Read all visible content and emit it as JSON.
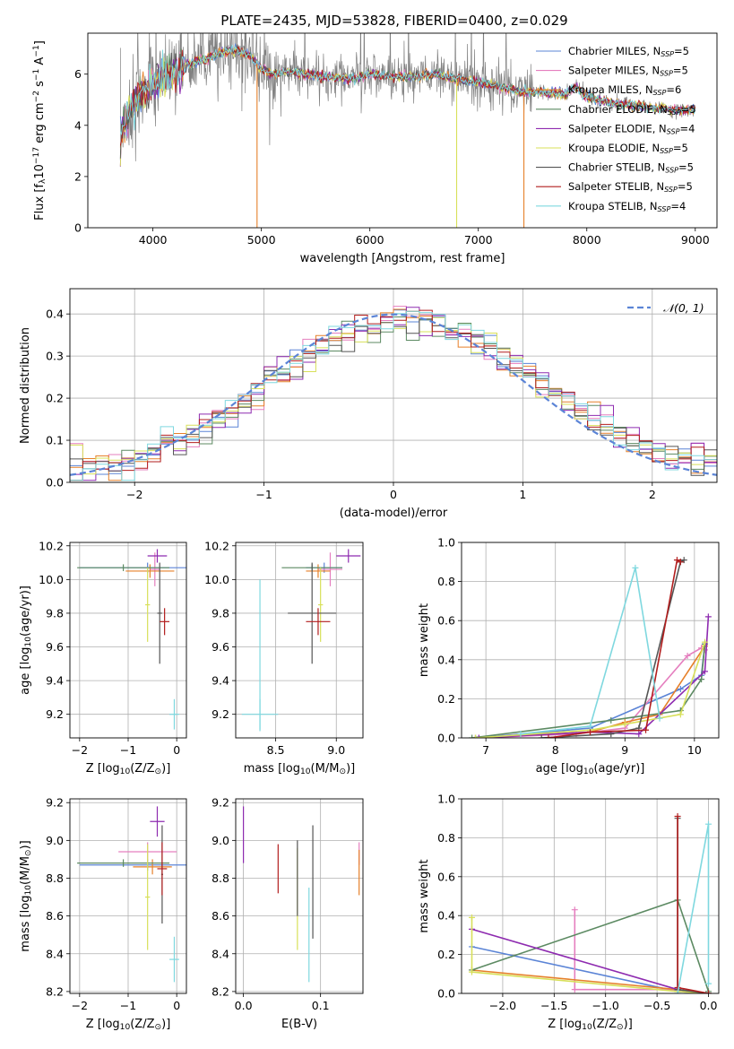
{
  "figure": {
    "title": "PLATE=2435, MJD=53828, FIBERID=0400, z=0.029"
  },
  "colors": {
    "Chabrier MILES": "#5b84d6",
    "Salpeter MILES": "#e57fbf",
    "Kroupa MILES": "#e6802a",
    "Chabrier ELODIE": "#5c8a62",
    "Salpeter ELODIE": "#8e2bb0",
    "Kroupa ELODIE": "#d8e05a",
    "Chabrier STELIB": "#555555",
    "Salpeter STELIB": "#b21e1e",
    "Kroupa STELIB": "#7fd8df",
    "gaussian": "#5b84d6",
    "observed_spectrum": "#808080"
  },
  "chart_data": [
    {
      "type": "line",
      "panel": "spectrum",
      "xlabel": "wavelength [Angstrom, rest frame]",
      "ylabel": "Flux [fλ10⁻¹⁷ erg cm⁻² s⁻¹ A⁻¹]",
      "xlim": [
        3400,
        9200
      ],
      "ylim": [
        0,
        7.6
      ],
      "xticks": [
        4000,
        5000,
        6000,
        7000,
        8000,
        9000
      ],
      "yticks": [
        0,
        2,
        4,
        6
      ],
      "grid": false,
      "legend_position": "top-right",
      "legend": [
        {
          "label": "Chabrier MILES, N",
          "sub": "SSP",
          "suffix": "=5",
          "series": "Chabrier MILES"
        },
        {
          "label": "Salpeter MILES, N",
          "sub": "SSP",
          "suffix": "=5",
          "series": "Salpeter MILES"
        },
        {
          "label": "Kroupa MILES, N",
          "sub": "SSP",
          "suffix": "=6",
          "series": "Kroupa MILES"
        },
        {
          "label": "Chabrier ELODIE, N",
          "sub": "SSP",
          "suffix": "=5",
          "series": "Chabrier ELODIE"
        },
        {
          "label": "Salpeter ELODIE, N",
          "sub": "SSP",
          "suffix": "=4",
          "series": "Salpeter ELODIE"
        },
        {
          "label": "Kroupa ELODIE, N",
          "sub": "SSP",
          "suffix": "=5",
          "series": "Kroupa ELODIE"
        },
        {
          "label": "Chabrier STELIB, N",
          "sub": "SSP",
          "suffix": "=5",
          "series": "Chabrier STELIB"
        },
        {
          "label": "Salpeter STELIB, N",
          "sub": "SSP",
          "suffix": "=5",
          "series": "Salpeter STELIB"
        },
        {
          "label": "Kroupa STELIB, N",
          "sub": "SSP",
          "suffix": "=4",
          "series": "Kroupa STELIB"
        }
      ],
      "model_trend": {
        "x": [
          3700,
          3750,
          3800,
          3900,
          4000,
          4100,
          4200,
          4300,
          4400,
          4500,
          4600,
          4700,
          4800,
          4900,
          5000,
          5100,
          5200,
          5400,
          5600,
          5800,
          6000,
          6200,
          6400,
          6600,
          6800,
          7000,
          7200,
          7400,
          7600,
          7800,
          7900,
          8000,
          8200,
          8400,
          8600,
          8800,
          9000
        ],
        "y": [
          3.6,
          4.2,
          4.7,
          5.3,
          5.6,
          5.9,
          6.1,
          6.3,
          6.5,
          6.6,
          6.8,
          6.9,
          6.9,
          6.7,
          6.2,
          6.0,
          6.1,
          6.0,
          5.9,
          5.8,
          6.0,
          5.9,
          5.9,
          6.0,
          5.8,
          5.7,
          5.5,
          5.3,
          5.3,
          5.2,
          5.5,
          5.1,
          4.9,
          4.8,
          4.7,
          4.6,
          4.6
        ]
      },
      "spikes": [
        {
          "x": 4960,
          "y": 0.0,
          "series": "Kroupa MILES"
        },
        {
          "x": 6800,
          "y": 0.0,
          "series": "Kroupa ELODIE"
        },
        {
          "x": 7420,
          "y": 0.0,
          "series": "Kroupa MILES"
        }
      ]
    },
    {
      "type": "line",
      "panel": "residual_histogram",
      "xlabel": "(data-model)/error",
      "ylabel": "Normed distribution",
      "xlim": [
        -2.5,
        2.5
      ],
      "ylim": [
        0,
        0.46
      ],
      "xticks": [
        -2,
        -1,
        0,
        1,
        2
      ],
      "yticks": [
        0.0,
        0.1,
        0.2,
        0.3,
        0.4
      ],
      "grid": true,
      "legend_position": "top-right",
      "legend": [
        {
          "label": "𝒩(0, 1)",
          "series": "gaussian"
        }
      ],
      "bin_width": 0.1
    },
    {
      "type": "scatter",
      "panel": "age_vs_Z",
      "xlabel": "Z [log₁₀(Z/Z⊙)]",
      "ylabel": "age  [log₁₀(age/yr)]",
      "xlim": [
        -2.2,
        0.2
      ],
      "ylim": [
        9.06,
        10.22
      ],
      "xticks": [
        -2,
        -1,
        0
      ],
      "yticks": [
        9.2,
        9.4,
        9.6,
        9.8,
        10.0,
        10.2
      ],
      "grid": true,
      "points": [
        {
          "series": "Chabrier MILES",
          "x": -0.6,
          "y": 10.07,
          "xerr": 1.4,
          "yerr": 0.03
        },
        {
          "series": "Salpeter MILES",
          "x": -0.45,
          "y": 10.06,
          "xerr": 0.1,
          "yerr": 0.1
        },
        {
          "series": "Kroupa MILES",
          "x": -0.55,
          "y": 10.05,
          "xerr": 0.5,
          "yerr": 0.04
        },
        {
          "series": "Chabrier ELODIE",
          "x": -1.1,
          "y": 10.07,
          "xerr": 0.95,
          "yerr": 0.02
        },
        {
          "series": "Salpeter ELODIE",
          "x": -0.4,
          "y": 10.14,
          "xerr": 0.2,
          "yerr": 0.04
        },
        {
          "series": "Kroupa ELODIE",
          "x": -0.6,
          "y": 9.85,
          "xerr": 0.05,
          "yerr": 0.22
        },
        {
          "series": "Chabrier STELIB",
          "x": -0.35,
          "y": 9.8,
          "xerr": 0.05,
          "yerr": 0.3
        },
        {
          "series": "Salpeter STELIB",
          "x": -0.25,
          "y": 9.75,
          "xerr": 0.1,
          "yerr": 0.08
        },
        {
          "series": "Kroupa STELIB",
          "x": -0.05,
          "y": 9.2,
          "xerr": 0.1,
          "yerr": 0.09
        }
      ]
    },
    {
      "type": "scatter",
      "panel": "age_vs_mass",
      "xlabel": "mass [log₁₀(M/M⊙)]",
      "ylabel": "",
      "xlim": [
        8.17,
        9.22
      ],
      "ylim": [
        9.06,
        10.22
      ],
      "xticks": [
        8.5,
        9.0
      ],
      "yticks": [
        9.2,
        9.4,
        9.6,
        9.8,
        10.0,
        10.2
      ],
      "grid": true,
      "points": [
        {
          "series": "Chabrier MILES",
          "x": 8.9,
          "y": 10.07,
          "xerr": 0.15,
          "yerr": 0.03
        },
        {
          "series": "Salpeter MILES",
          "x": 8.95,
          "y": 10.06,
          "xerr": 0.1,
          "yerr": 0.1
        },
        {
          "series": "Kroupa MILES",
          "x": 8.85,
          "y": 10.05,
          "xerr": 0.1,
          "yerr": 0.04
        },
        {
          "series": "Chabrier ELODIE",
          "x": 8.8,
          "y": 10.07,
          "xerr": 0.25,
          "yerr": 0.02
        },
        {
          "series": "Salpeter ELODIE",
          "x": 9.1,
          "y": 10.14,
          "xerr": 0.1,
          "yerr": 0.04
        },
        {
          "series": "Kroupa ELODIE",
          "x": 8.87,
          "y": 9.85,
          "xerr": 0.02,
          "yerr": 0.22
        },
        {
          "series": "Chabrier STELIB",
          "x": 8.8,
          "y": 9.8,
          "xerr": 0.2,
          "yerr": 0.3
        },
        {
          "series": "Salpeter STELIB",
          "x": 8.85,
          "y": 9.75,
          "xerr": 0.1,
          "yerr": 0.08
        },
        {
          "series": "Kroupa STELIB",
          "x": 8.37,
          "y": 9.2,
          "xerr": 0.15,
          "yerr": 0.09
        },
        {
          "series": "Kroupa STELIB",
          "x": 8.37,
          "y": 9.55,
          "xerr": 0.0,
          "yerr": 0.45
        }
      ]
    },
    {
      "type": "line",
      "panel": "mass_weight_vs_age",
      "xlabel": "age  [log₁₀(age/yr)]",
      "ylabel": "mass weight",
      "xlim": [
        6.65,
        10.35
      ],
      "ylim": [
        0,
        1.0
      ],
      "xticks": [
        7,
        8,
        9,
        10
      ],
      "yticks": [
        0.0,
        0.2,
        0.4,
        0.6,
        0.8,
        1.0
      ],
      "grid": true,
      "series": [
        {
          "name": "Chabrier MILES",
          "x": [
            6.85,
            8.5,
            9.8,
            10.1,
            10.15
          ],
          "y": [
            0.0,
            0.05,
            0.25,
            0.32,
            0.48
          ]
        },
        {
          "name": "Salpeter MILES",
          "x": [
            6.9,
            8.3,
            9.0,
            9.9,
            10.1,
            10.15
          ],
          "y": [
            0.0,
            0.02,
            0.05,
            0.42,
            0.46,
            0.45
          ]
        },
        {
          "name": "Kroupa MILES",
          "x": [
            6.85,
            8.5,
            9.0,
            9.5,
            10.15
          ],
          "y": [
            0.0,
            0.03,
            0.08,
            0.12,
            0.47
          ]
        },
        {
          "name": "Chabrier ELODIE",
          "x": [
            6.8,
            8.8,
            9.8,
            10.1,
            10.15
          ],
          "y": [
            0.0,
            0.09,
            0.14,
            0.3,
            0.48
          ]
        },
        {
          "name": "Salpeter ELODIE",
          "x": [
            6.9,
            8.5,
            9.2,
            10.15,
            10.2
          ],
          "y": [
            0.0,
            0.03,
            0.02,
            0.34,
            0.62
          ]
        },
        {
          "name": "Kroupa ELODIE",
          "x": [
            6.85,
            8.5,
            9.0,
            9.8,
            10.15
          ],
          "y": [
            0.0,
            0.04,
            0.07,
            0.12,
            0.49
          ]
        },
        {
          "name": "Chabrier STELIB",
          "x": [
            7.8,
            8.8,
            9.2,
            9.8,
            9.85
          ],
          "y": [
            0.0,
            0.02,
            0.05,
            0.9,
            0.91
          ]
        },
        {
          "name": "Salpeter STELIB",
          "x": [
            7.9,
            8.5,
            9.3,
            9.75,
            9.8
          ],
          "y": [
            0.0,
            0.03,
            0.04,
            0.91,
            0.9
          ]
        },
        {
          "name": "Kroupa STELIB",
          "x": [
            7.5,
            8.5,
            9.15,
            9.5
          ],
          "y": [
            0.02,
            0.06,
            0.87,
            0.1
          ]
        }
      ]
    },
    {
      "type": "scatter",
      "panel": "mass_vs_Z",
      "xlabel": "Z [log₁₀(Z/Z⊙)]",
      "ylabel": "mass [log₁₀(M/M⊙)]",
      "xlim": [
        -2.2,
        0.2
      ],
      "ylim": [
        8.19,
        9.22
      ],
      "xticks": [
        -2,
        -1,
        0
      ],
      "yticks": [
        8.2,
        8.4,
        8.6,
        8.8,
        9.0,
        9.2
      ],
      "grid": true,
      "points": [
        {
          "series": "Chabrier MILES",
          "x": -0.6,
          "y": 8.87,
          "xerr": 1.4,
          "yerr": 0.03
        },
        {
          "series": "Salpeter MILES",
          "x": -0.6,
          "y": 8.94,
          "xerr": 0.6,
          "yerr": 0.05
        },
        {
          "series": "Kroupa MILES",
          "x": -0.5,
          "y": 8.86,
          "xerr": 0.4,
          "yerr": 0.04
        },
        {
          "series": "Chabrier ELODIE",
          "x": -1.1,
          "y": 8.88,
          "xerr": 0.95,
          "yerr": 0.02
        },
        {
          "series": "Salpeter ELODIE",
          "x": -0.4,
          "y": 9.1,
          "xerr": 0.15,
          "yerr": 0.08
        },
        {
          "series": "Kroupa ELODIE",
          "x": -0.6,
          "y": 8.7,
          "xerr": 0.05,
          "yerr": 0.28
        },
        {
          "series": "Chabrier STELIB",
          "x": -0.3,
          "y": 8.82,
          "xerr": 0.02,
          "yerr": 0.26
        },
        {
          "series": "Salpeter STELIB",
          "x": -0.3,
          "y": 8.85,
          "xerr": 0.1,
          "yerr": 0.14
        },
        {
          "series": "Kroupa STELIB",
          "x": -0.05,
          "y": 8.37,
          "xerr": 0.1,
          "yerr": 0.12
        }
      ]
    },
    {
      "type": "scatter",
      "panel": "mass_vs_ebv",
      "xlabel": "E(B-V)",
      "ylabel": "",
      "xlim": [
        -0.01,
        0.155
      ],
      "ylim": [
        8.19,
        9.22
      ],
      "xticks": [
        0.0,
        0.1
      ],
      "yticks": [
        8.2,
        8.4,
        8.6,
        8.8,
        9.0,
        9.2
      ],
      "grid": true,
      "points": [
        {
          "series": "Salpeter ELODIE",
          "x": 0.0,
          "y": 9.03,
          "xerr": 0.0,
          "yerr": 0.15
        },
        {
          "series": "Salpeter STELIB",
          "x": 0.045,
          "y": 8.85,
          "xerr": 0.0,
          "yerr": 0.13
        },
        {
          "series": "Kroupa ELODIE",
          "x": 0.07,
          "y": 8.69,
          "xerr": 0.0,
          "yerr": 0.27
        },
        {
          "series": "Chabrier STELIB",
          "x": 0.07,
          "y": 8.8,
          "xerr": 0.0,
          "yerr": 0.2
        },
        {
          "series": "Kroupa STELIB",
          "x": 0.085,
          "y": 8.5,
          "xerr": 0.0,
          "yerr": 0.25
        },
        {
          "series": "Chabrier STELIB",
          "x": 0.09,
          "y": 8.78,
          "xerr": 0.0,
          "yerr": 0.3
        },
        {
          "series": "Salpeter MILES",
          "x": 0.15,
          "y": 8.93,
          "xerr": 0.0,
          "yerr": 0.06
        },
        {
          "series": "Kroupa MILES",
          "x": 0.15,
          "y": 8.83,
          "xerr": 0.0,
          "yerr": 0.12
        }
      ]
    },
    {
      "type": "line",
      "panel": "mass_weight_vs_Z",
      "xlabel": "Z [log₁₀(Z/Z⊙)]",
      "ylabel": "mass weight",
      "xlim": [
        -2.4,
        0.1
      ],
      "ylim": [
        0,
        1.0
      ],
      "xticks": [
        -2.0,
        -1.5,
        -1.0,
        -0.5,
        0.0
      ],
      "yticks": [
        0.0,
        0.2,
        0.4,
        0.6,
        0.8,
        1.0
      ],
      "grid": true,
      "series": [
        {
          "name": "Chabrier MILES",
          "x": [
            -2.3,
            -0.3,
            0.0
          ],
          "y": [
            0.24,
            0.01,
            0.0
          ]
        },
        {
          "name": "Salpeter MILES",
          "x": [
            -1.3,
            -1.3,
            -0.3,
            0.0
          ],
          "y": [
            0.43,
            0.02,
            0.02,
            0.0
          ]
        },
        {
          "name": "Kroupa MILES",
          "x": [
            -2.3,
            -0.3,
            0.0
          ],
          "y": [
            0.12,
            0.02,
            0.0
          ]
        },
        {
          "name": "Chabrier ELODIE",
          "x": [
            -2.3,
            -0.3,
            0.0
          ],
          "y": [
            0.12,
            0.48,
            0.01
          ]
        },
        {
          "name": "Salpeter ELODIE",
          "x": [
            -2.3,
            -0.3,
            0.0
          ],
          "y": [
            0.33,
            0.02,
            0.0
          ]
        },
        {
          "name": "Kroupa ELODIE",
          "x": [
            -2.3,
            -2.3,
            -0.3,
            0.0
          ],
          "y": [
            0.39,
            0.11,
            0.01,
            0.0
          ]
        },
        {
          "name": "Chabrier STELIB",
          "x": [
            -0.3,
            -0.3,
            0.0
          ],
          "y": [
            0.9,
            0.02,
            0.0
          ]
        },
        {
          "name": "Salpeter STELIB",
          "x": [
            -0.3,
            -0.3,
            0.0
          ],
          "y": [
            0.91,
            0.03,
            0.0
          ]
        },
        {
          "name": "Kroupa STELIB",
          "x": [
            -0.3,
            0.0,
            0.0
          ],
          "y": [
            0.0,
            0.87,
            0.05
          ]
        }
      ]
    }
  ]
}
